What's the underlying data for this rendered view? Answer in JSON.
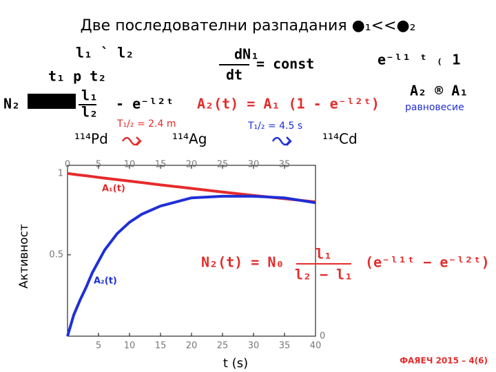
{
  "title": "Две последователни разпадания ●₁<<●₂",
  "formulas": {
    "ratio_top": "l₁ ` l₂",
    "ratio_bottom": "t₁ p t₂",
    "dn": "dN₁",
    "dt": "dt",
    "const": "= const",
    "exp": "e⁻ˡ¹ ᵗ ₍ 1",
    "n2": "N₂",
    "n2_frac_top": "l₁",
    "n2_frac_bottom": "l₂",
    "n2_exp": "- e⁻ˡ²ᵗ",
    "a2": "A₂(t) = A₁ (1 - e⁻ˡ²ᵗ)",
    "a2a1": "A₂ ® A₁",
    "equilibrium": "равновесие"
  },
  "decay": {
    "half_life_1": "T₁/₂ = 2.4 m",
    "half_life_2": "T₁/₂ = 4.5 s",
    "nuclide_1": "¹¹⁴Pd",
    "nuclide_2": "¹¹⁴Ag",
    "nuclide_3": "¹¹⁴Cd"
  },
  "chart_data": {
    "type": "line",
    "y_label": "Активност",
    "x_label": "t (s)",
    "annotations": [
      "A₁(t)",
      "A₂(t)"
    ],
    "formula": {
      "lhs": "N₂(t) = N₀",
      "num": "l₁",
      "den": "l₂ − l₁",
      "rhs": "(e⁻ˡ¹ᵗ − e⁻ˡ²ᵗ)"
    },
    "x": [
      0,
      1,
      2,
      3,
      4,
      5,
      6,
      8,
      10,
      12,
      15,
      18,
      20,
      25,
      30,
      35,
      40
    ],
    "series": [
      {
        "name": "A₁(t)",
        "color": "#e52b2b",
        "values": [
          1,
          0.995,
          0.99,
          0.986,
          0.981,
          0.976,
          0.971,
          0.962,
          0.953,
          0.944,
          0.93,
          0.917,
          0.908,
          0.886,
          0.865,
          0.845,
          0.825
        ]
      },
      {
        "name": "A₂(t)",
        "color": "#1f2fd6",
        "values": [
          0,
          0.13,
          0.22,
          0.3,
          0.39,
          0.46,
          0.53,
          0.63,
          0.7,
          0.75,
          0.8,
          0.83,
          0.85,
          0.86,
          0.86,
          0.85,
          0.82
        ]
      }
    ],
    "xlim": [
      0,
      40
    ],
    "xticks": [
      5,
      10,
      15,
      20,
      25,
      30,
      35,
      40
    ],
    "x2ticks": [
      0,
      5,
      10,
      15,
      20,
      25,
      30,
      35
    ],
    "ylim": [
      0,
      1.05
    ],
    "yticks": [
      0.5,
      1
    ],
    "y2lim": [
      0,
      1.05
    ],
    "y2ticks": [
      0
    ]
  },
  "footer": "ФАЯЕЧ 2015 – 4(6)"
}
